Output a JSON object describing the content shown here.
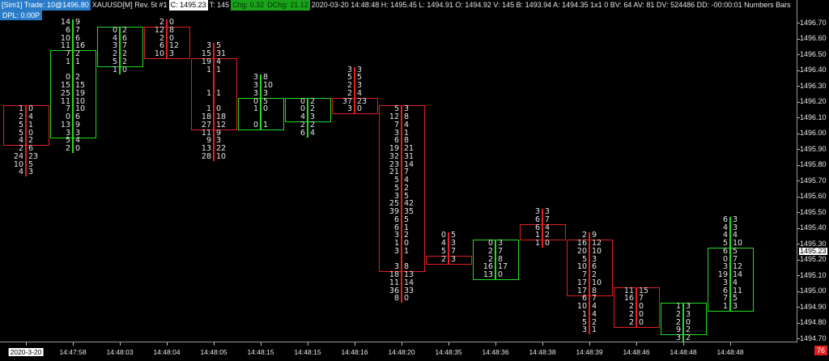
{
  "header": {
    "account": "[Sim1]  Trade: 10@1496.80",
    "symbol": "XAUUSD[M]  Rev. 5t  #1",
    "close": "C: 1495.23",
    "ticks": "T: 145",
    "chg": "Chg: 0.32",
    "dchg": "DChg: 21.12",
    "info": "2020-03-20 14:48:48 H: 1495.45 L: 1494.91 O: 1494.92 V: 145 B: 1493.94 A: 1494.35 1x1 0 BV: 64 AV: 81 DV: 524486 DD: -00:00:01 Numbers Bars",
    "dpl": "DPL: 0.00P"
  },
  "colors": {
    "up": "#22dd22",
    "down": "#e02020",
    "text": "#e6e6e6",
    "header_blue": "#2b7cc8",
    "header_green": "#19a319"
  },
  "price_axis": {
    "labels": [
      "1496.70",
      "1496.60",
      "1496.50",
      "1496.40",
      "1496.30",
      "1496.20",
      "1496.10",
      "1496.00",
      "1495.90",
      "1495.80",
      "1495.70",
      "1495.60",
      "1495.50",
      "1495.40",
      "1495.30",
      "1495.20",
      "1495.10",
      "1495.00",
      "1494.90",
      "1494.80",
      "1494.70"
    ],
    "current_price": "1495.23",
    "tick_size": 0.05
  },
  "x_axis": {
    "date": "2020-3-20",
    "bar_count": "76"
  },
  "bars": [
    {
      "time": "",
      "high": 1496.15,
      "open": 1496.15,
      "close": 1495.95,
      "rows": [
        [
          "1",
          "0"
        ],
        [
          "2",
          "4"
        ],
        [
          "5",
          "1"
        ],
        [
          "5",
          "0"
        ],
        [
          "4",
          "2"
        ],
        [
          "2",
          "6"
        ],
        [
          "24",
          "23"
        ],
        [
          "10",
          "5"
        ],
        [
          "4",
          "3"
        ]
      ]
    },
    {
      "time": "14:47:58",
      "high": 1496.7,
      "open": 1496.0,
      "close": 1496.5,
      "rows": [
        [
          "14",
          "9"
        ],
        [
          "6",
          "7"
        ],
        [
          "10",
          "6"
        ],
        [
          "11",
          "16"
        ],
        [
          "7",
          "2"
        ],
        [
          "1",
          "1"
        ],
        null,
        [
          "0",
          "2"
        ],
        [
          "15",
          "15"
        ],
        [
          "25",
          "19"
        ],
        [
          "11",
          "10"
        ],
        [
          "7",
          "10"
        ],
        [
          "0",
          "6"
        ],
        [
          "13",
          "9"
        ],
        [
          "3",
          "3"
        ],
        [
          "5",
          "4"
        ],
        [
          "2",
          "0"
        ]
      ]
    },
    {
      "time": "14:48:03",
      "high": 1496.65,
      "open": 1496.45,
      "close": 1496.65,
      "rows": [
        [
          "0",
          "2"
        ],
        [
          "4",
          "6"
        ],
        [
          "3",
          "7"
        ],
        [
          "2",
          "2"
        ],
        [
          "5",
          "2"
        ],
        [
          "1",
          "0"
        ]
      ]
    },
    {
      "time": "14:48:04",
      "high": 1496.7,
      "open": 1496.65,
      "close": 1496.5,
      "rows": [
        [
          "2",
          "0"
        ],
        [
          "12",
          "8"
        ],
        [
          "2",
          "0"
        ],
        [
          "6",
          "12"
        ],
        [
          "10",
          "3"
        ]
      ]
    },
    {
      "time": "14:48:05",
      "high": 1496.55,
      "open": 1496.45,
      "close": 1496.05,
      "rows": [
        [
          "3",
          "5"
        ],
        [
          "15",
          "31"
        ],
        [
          "19",
          "4"
        ],
        [
          "1",
          "1"
        ],
        null,
        null,
        [
          "1",
          "1"
        ],
        null,
        [
          "1",
          "0"
        ],
        [
          "18",
          "18"
        ],
        [
          "27",
          "12"
        ],
        [
          "11",
          "9"
        ],
        [
          "9",
          "3"
        ],
        [
          "13",
          "22"
        ],
        [
          "28",
          "10"
        ]
      ]
    },
    {
      "time": "14:48:15",
      "high": 1496.35,
      "open": 1496.05,
      "close": 1496.2,
      "rows": [
        [
          "3",
          "8"
        ],
        [
          "3",
          "10"
        ],
        [
          "3",
          "3"
        ],
        [
          "0",
          "5"
        ],
        [
          "1",
          "0"
        ],
        null,
        [
          "0",
          "1"
        ]
      ]
    },
    {
      "time": "14:48:15",
      "high": 1496.2,
      "open": 1496.1,
      "close": 1496.2,
      "rows": [
        [
          "0",
          "2"
        ],
        [
          "0",
          "2"
        ],
        [
          "4",
          "3"
        ],
        [
          "2",
          "2"
        ],
        [
          "6",
          "4"
        ]
      ]
    },
    {
      "time": "14:48:16",
      "high": 1496.4,
      "open": 1496.2,
      "close": 1496.15,
      "rows": [
        [
          "3",
          "3"
        ],
        [
          "5",
          "5"
        ],
        [
          "2",
          "3"
        ],
        [
          "2",
          "4"
        ],
        [
          "37",
          "23"
        ],
        [
          "3",
          "0"
        ]
      ]
    },
    {
      "time": "14:48:20",
      "high": 1496.15,
      "open": 1496.15,
      "close": 1495.15,
      "rows": [
        [
          "5",
          "3"
        ],
        [
          "12",
          "8"
        ],
        [
          "7",
          "4"
        ],
        [
          "3",
          "1"
        ],
        [
          "6",
          "8"
        ],
        [
          "19",
          "21"
        ],
        [
          "32",
          "31"
        ],
        [
          "23",
          "14"
        ],
        [
          "21",
          "7"
        ],
        [
          "5",
          "4"
        ],
        [
          "5",
          "2"
        ],
        [
          "3",
          "5"
        ],
        [
          "25",
          "42"
        ],
        [
          "39",
          "35"
        ],
        [
          "6",
          "5"
        ],
        [
          "6",
          "1"
        ],
        [
          "3",
          "2"
        ],
        [
          "1",
          "0"
        ],
        [
          "3",
          "1"
        ],
        null,
        [
          "3",
          "8"
        ],
        [
          "18",
          "13"
        ],
        [
          "11",
          "14"
        ],
        [
          "36",
          "33"
        ],
        [
          "8",
          "0"
        ]
      ]
    },
    {
      "time": "14:48:35",
      "high": 1495.35,
      "open": 1495.2,
      "close": 1495.2,
      "rows": [
        [
          "0",
          "5"
        ],
        [
          "4",
          "3"
        ],
        [
          "5",
          "7"
        ],
        [
          "2",
          "3"
        ]
      ]
    },
    {
      "time": "14:48:36",
      "high": 1495.3,
      "open": 1495.1,
      "close": 1495.3,
      "rows": [
        [
          "0",
          "3"
        ],
        [
          "2",
          "7"
        ],
        [
          "2",
          "8"
        ],
        [
          "16",
          "17"
        ],
        [
          "13",
          "0"
        ]
      ]
    },
    {
      "time": "14:48:38",
      "high": 1495.5,
      "open": 1495.4,
      "close": 1495.35,
      "rows": [
        [
          "3",
          "3"
        ],
        [
          "6",
          "7"
        ],
        [
          "6",
          "4"
        ],
        [
          "1",
          "2"
        ],
        [
          "1",
          "0"
        ]
      ]
    },
    {
      "time": "14:48:39",
      "high": 1495.35,
      "open": 1495.3,
      "close": 1495.0,
      "rows": [
        [
          "2",
          "9"
        ],
        [
          "16",
          "12"
        ],
        [
          "20",
          "10"
        ],
        [
          "5",
          "3"
        ],
        [
          "10",
          "6"
        ],
        [
          "7",
          "2"
        ],
        [
          "17",
          "10"
        ],
        [
          "17",
          "8"
        ],
        [
          "6",
          "7"
        ],
        [
          "10",
          "4"
        ],
        [
          "1",
          "4"
        ],
        [
          "5",
          "2"
        ],
        [
          "3",
          "1"
        ]
      ]
    },
    {
      "time": "14:48:46",
      "high": 1495.0,
      "open": 1495.0,
      "close": 1494.8,
      "rows": [
        [
          "11",
          "15"
        ],
        [
          "16",
          "7"
        ],
        [
          "2",
          "0"
        ],
        [
          "2",
          "0"
        ],
        [
          "2",
          "0"
        ]
      ]
    },
    {
      "time": "14:48:48",
      "high": 1494.9,
      "open": 1494.75,
      "close": 1494.9,
      "rows": [
        [
          "1",
          "3"
        ],
        [
          "2",
          "3"
        ],
        [
          "2",
          "0"
        ],
        [
          "9",
          "2"
        ],
        [
          "3",
          "2"
        ]
      ]
    },
    {
      "time": "14:48:48",
      "high": 1495.45,
      "open": 1494.9,
      "close": 1495.25,
      "rows": [
        [
          "6",
          "3"
        ],
        [
          "4",
          "3"
        ],
        [
          "4",
          "4"
        ],
        [
          "5",
          "10"
        ],
        [
          "6",
          "5"
        ],
        [
          "0",
          "7"
        ],
        [
          "3",
          "12"
        ],
        [
          "19",
          "14"
        ],
        [
          "3",
          "4"
        ],
        [
          "6",
          "11"
        ],
        [
          "7",
          "5"
        ],
        [
          "1",
          "3"
        ]
      ]
    }
  ]
}
